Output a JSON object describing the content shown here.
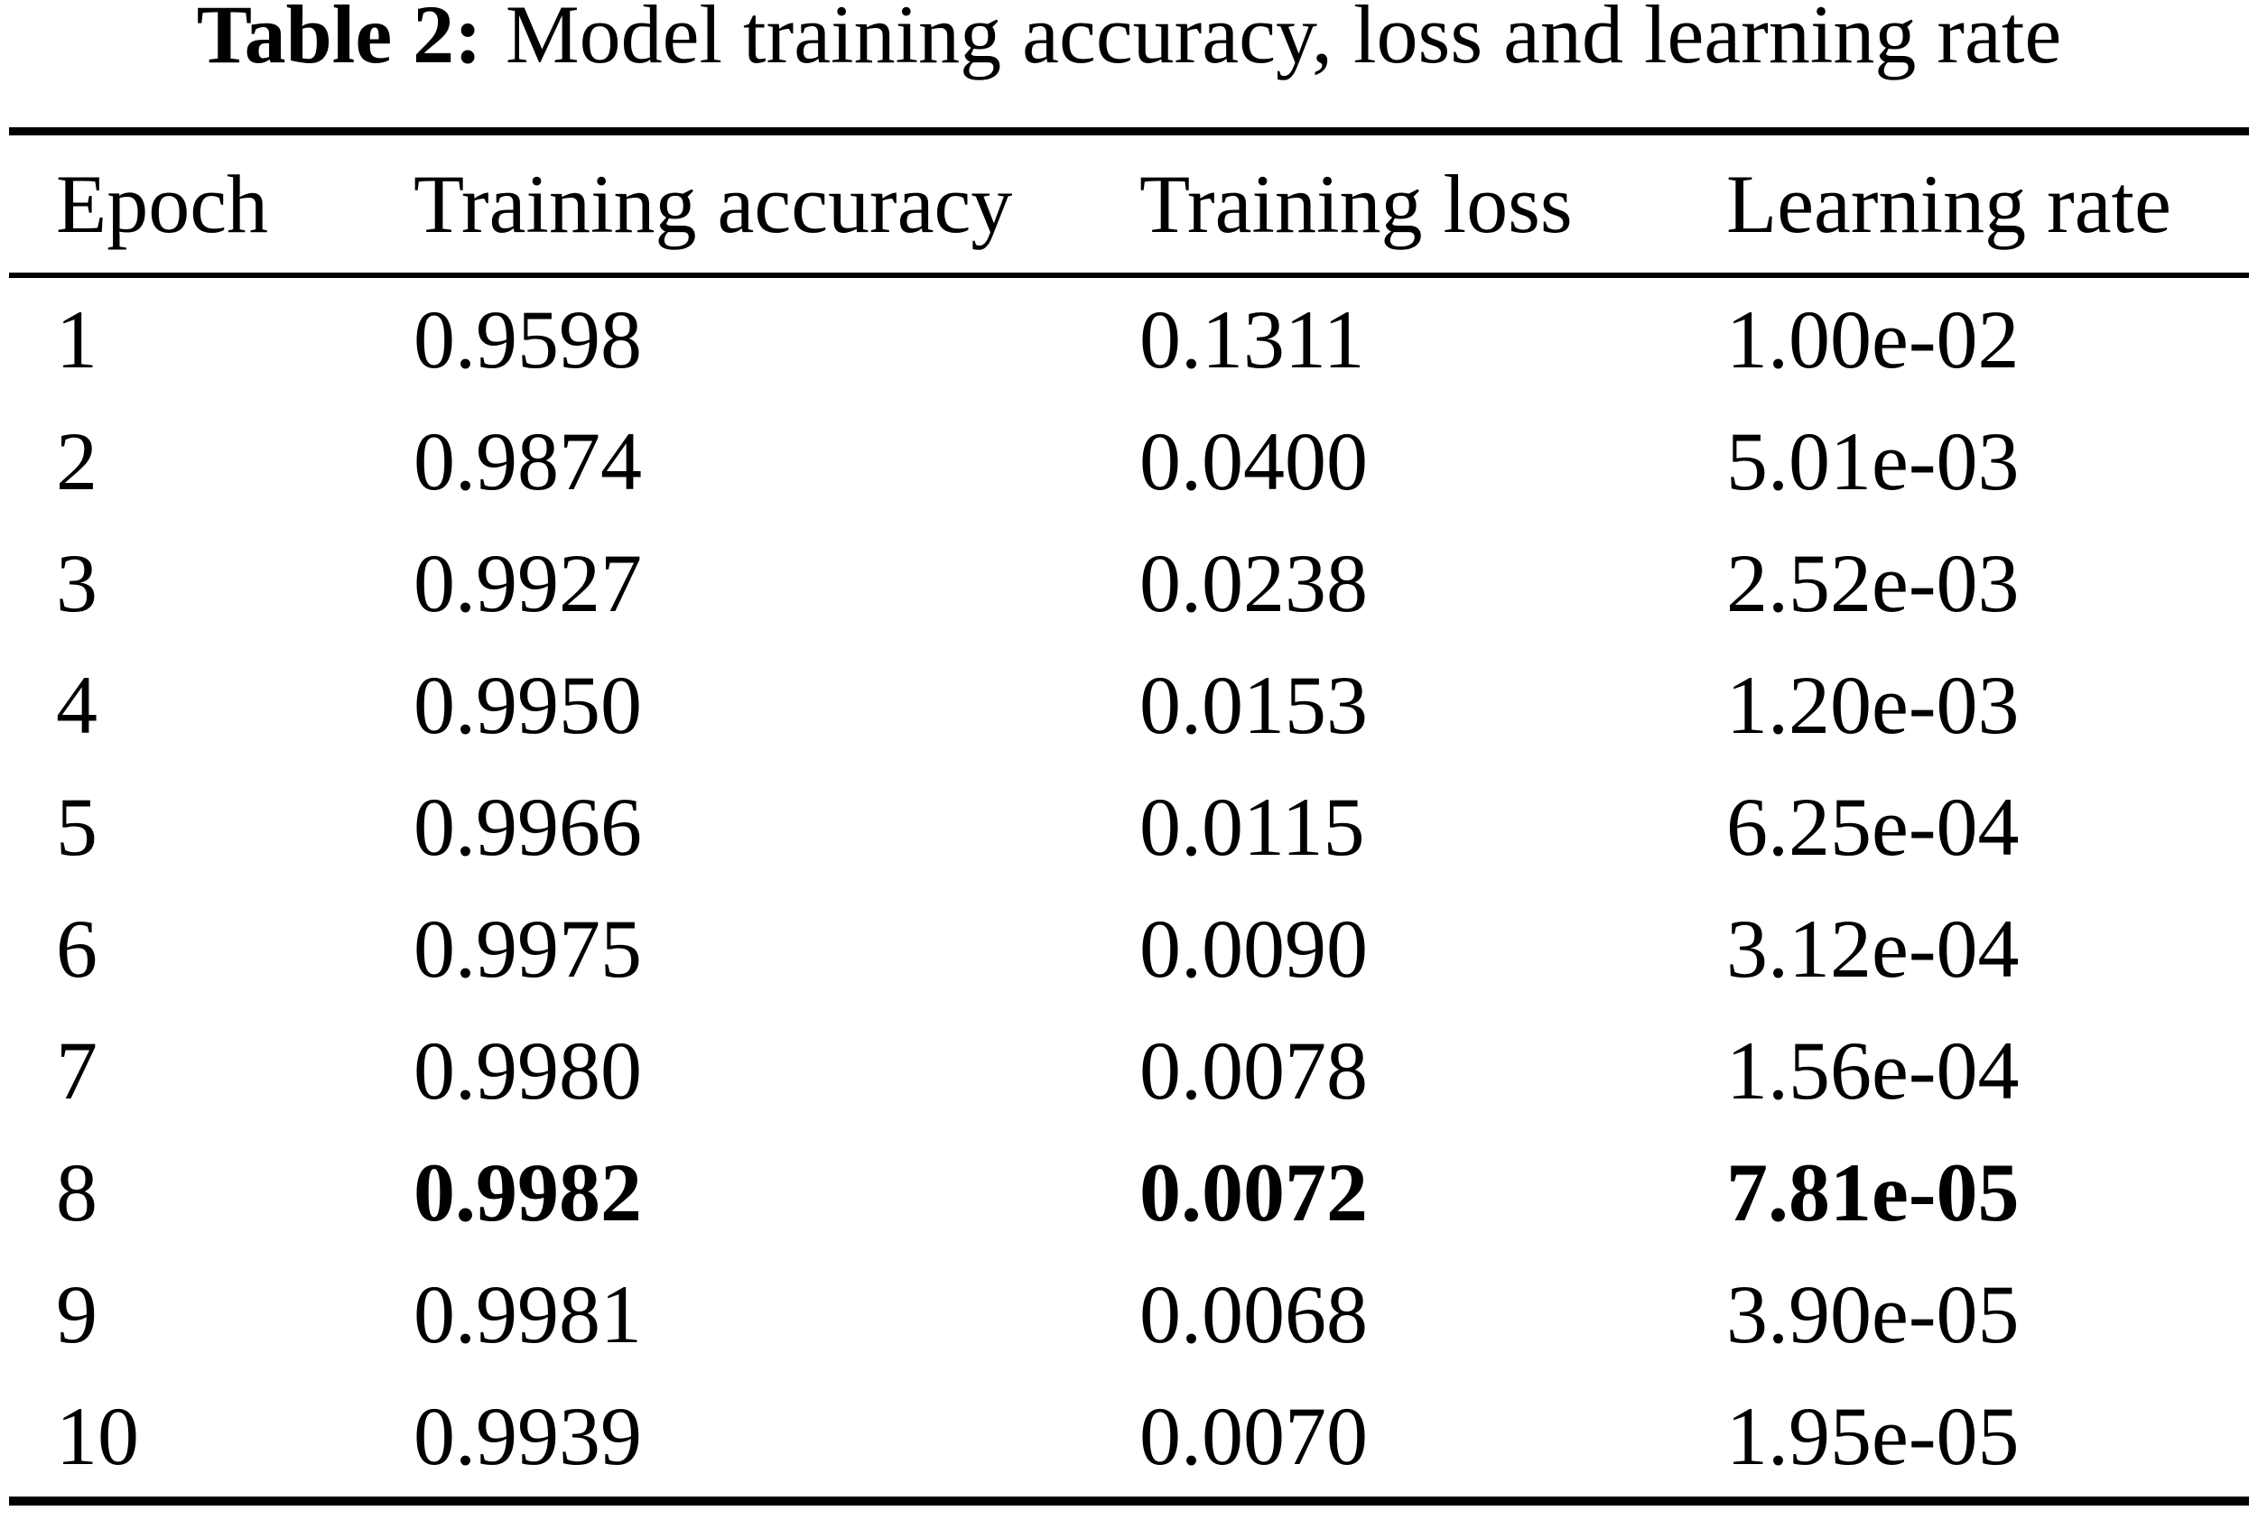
{
  "page": {
    "background_color": "#ffffff",
    "text_color": "#000000",
    "rule_color": "#000000"
  },
  "title": {
    "label": "Table 2:",
    "text": "Model training accuracy, loss and learning rate"
  },
  "table": {
    "columns": [
      "Epoch",
      "Training accuracy",
      "Training loss",
      "Learning rate"
    ],
    "rows": [
      {
        "epoch": "1",
        "training_accuracy": "0.9598",
        "training_loss": "0.1311",
        "learning_rate": "1.00e-02",
        "bold": false
      },
      {
        "epoch": "2",
        "training_accuracy": "0.9874",
        "training_loss": "0.0400",
        "learning_rate": "5.01e-03",
        "bold": false
      },
      {
        "epoch": "3",
        "training_accuracy": "0.9927",
        "training_loss": "0.0238",
        "learning_rate": "2.52e-03",
        "bold": false
      },
      {
        "epoch": "4",
        "training_accuracy": "0.9950",
        "training_loss": "0.0153",
        "learning_rate": "1.20e-03",
        "bold": false
      },
      {
        "epoch": "5",
        "training_accuracy": "0.9966",
        "training_loss": "0.0115",
        "learning_rate": "6.25e-04",
        "bold": false
      },
      {
        "epoch": "6",
        "training_accuracy": "0.9975",
        "training_loss": "0.0090",
        "learning_rate": "3.12e-04",
        "bold": false
      },
      {
        "epoch": "7",
        "training_accuracy": "0.9980",
        "training_loss": "0.0078",
        "learning_rate": "1.56e-04",
        "bold": false
      },
      {
        "epoch": "8",
        "training_accuracy": "0.9982",
        "training_loss": "0.0072",
        "learning_rate": "7.81e-05",
        "bold": true
      },
      {
        "epoch": "9",
        "training_accuracy": "0.9981",
        "training_loss": "0.0068",
        "learning_rate": "3.90e-05",
        "bold": false
      },
      {
        "epoch": "10",
        "training_accuracy": "0.9939",
        "training_loss": "0.0070",
        "learning_rate": "1.95e-05",
        "bold": false
      }
    ]
  }
}
